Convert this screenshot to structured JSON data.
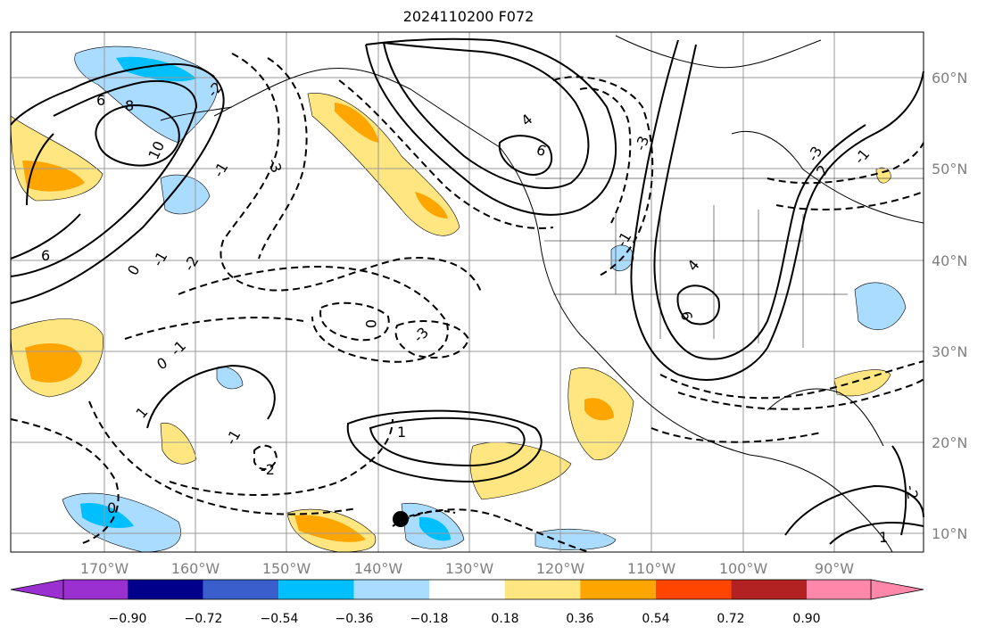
{
  "title": "2024110200 F072",
  "map": {
    "lon_labels": [
      "170°W",
      "160°W",
      "150°W",
      "140°W",
      "130°W",
      "120°W",
      "110°W",
      "100°W",
      "90°W"
    ],
    "lat_labels": [
      "60°N",
      "50°N",
      "40°N",
      "30°N",
      "20°N",
      "10°N"
    ],
    "grid": true,
    "contour_labels": [
      "6",
      "8",
      "10",
      "4",
      "6",
      "6",
      "4",
      "6",
      "-3",
      "-2",
      "-1",
      "0",
      "-1",
      "-2",
      "1",
      "-1",
      "-2",
      "-3",
      "0",
      "-1",
      "0",
      "0",
      "-2",
      "-3",
      "-1",
      "1",
      "2",
      "-3",
      "1",
      "-1"
    ]
  },
  "colorbar": {
    "ticks": [
      "−0.90",
      "−0.72",
      "−0.54",
      "−0.36",
      "−0.18",
      "0.18",
      "0.36",
      "0.54",
      "0.72",
      "0.90"
    ],
    "colors": [
      "#9b30d0",
      "#00008b",
      "#3a5fcd",
      "#00bfff",
      "#aadcff",
      "#ffffff",
      "#ffe680",
      "#ffa500",
      "#ff4500",
      "#b22222",
      "#ff88aa"
    ]
  }
}
